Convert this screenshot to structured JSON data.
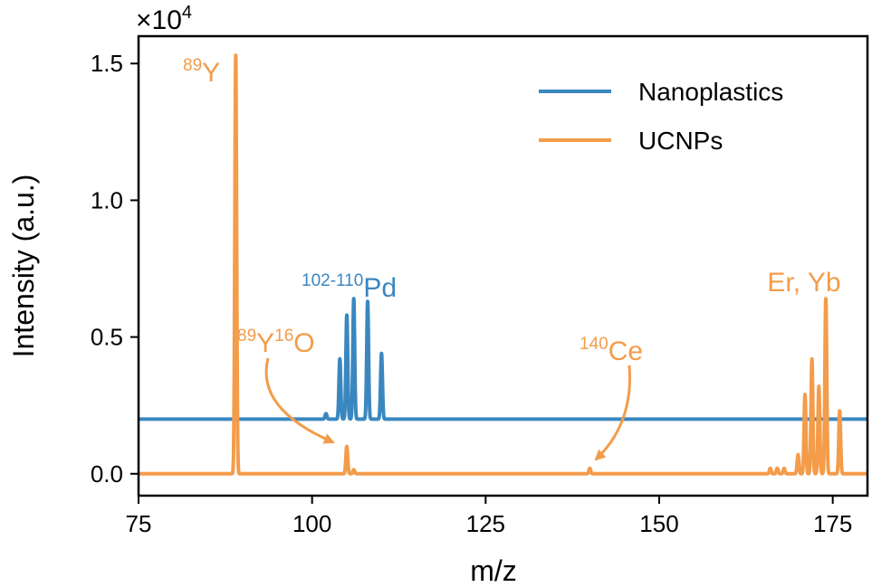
{
  "chart_data": {
    "type": "line",
    "xlabel": "m/z",
    "ylabel": "Intensity (a.u.)",
    "y_multiplier": "×10",
    "y_multiplier_exp": "4",
    "xlim": [
      75,
      180
    ],
    "ylim": [
      -0.08,
      1.6
    ],
    "x_ticks": [
      75,
      100,
      125,
      150,
      175
    ],
    "y_ticks": [
      0.0,
      0.5,
      1.0,
      1.5
    ],
    "x_tick_labels": [
      "75",
      "100",
      "125",
      "150",
      "175"
    ],
    "y_tick_labels": [
      "0.0",
      "0.5",
      "1.0",
      "1.5"
    ],
    "legend_position": "top-right",
    "series": [
      {
        "name": "Nanoplastics",
        "color": "#3a87c0",
        "baseline": 0.2,
        "peaks": [
          {
            "x": 102,
            "y": 0.22
          },
          {
            "x": 104,
            "y": 0.42
          },
          {
            "x": 105,
            "y": 0.58
          },
          {
            "x": 106,
            "y": 0.64
          },
          {
            "x": 108,
            "y": 0.63
          },
          {
            "x": 110,
            "y": 0.44
          }
        ]
      },
      {
        "name": "UCNPs",
        "color": "#f39c4a",
        "baseline": 0.0,
        "peaks": [
          {
            "x": 89,
            "y": 1.53
          },
          {
            "x": 105,
            "y": 0.1
          },
          {
            "x": 106,
            "y": 0.015
          },
          {
            "x": 140,
            "y": 0.02
          },
          {
            "x": 166,
            "y": 0.02
          },
          {
            "x": 167,
            "y": 0.02
          },
          {
            "x": 168,
            "y": 0.02
          },
          {
            "x": 170,
            "y": 0.07
          },
          {
            "x": 171,
            "y": 0.29
          },
          {
            "x": 172,
            "y": 0.42
          },
          {
            "x": 173,
            "y": 0.32
          },
          {
            "x": 174,
            "y": 0.64
          },
          {
            "x": 176,
            "y": 0.23
          }
        ]
      }
    ],
    "annotations": [
      {
        "id": "y89",
        "sup": "89",
        "text": "Y",
        "color": "#f39c4a"
      },
      {
        "id": "pd",
        "sup": "102-110",
        "text": "Pd",
        "color": "#3a87c0"
      },
      {
        "id": "yo",
        "sup1": "89",
        "text1": "Y",
        "sup2": "16",
        "text2": "O",
        "color": "#f39c4a"
      },
      {
        "id": "ce",
        "sup": "140",
        "text": "Ce",
        "color": "#f39c4a"
      },
      {
        "id": "eryb",
        "text": "Er, Yb",
        "color": "#f39c4a"
      }
    ]
  }
}
